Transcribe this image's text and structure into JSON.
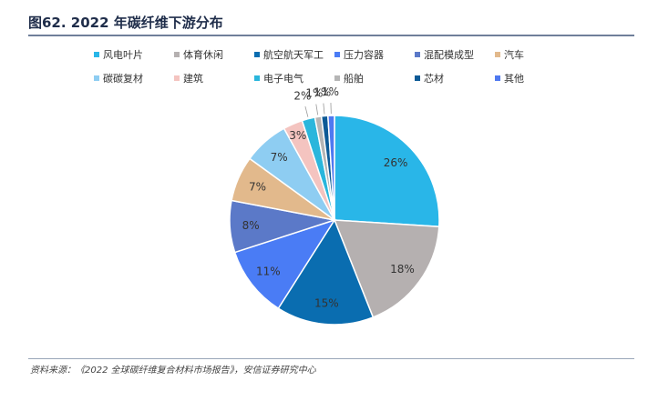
{
  "figure": {
    "title": "图62. 2022 年碳纤维下游分布",
    "source": "资料来源：《2022 全球碳纤维复合材料市场报告》，安信证券研究中心"
  },
  "chart_data": {
    "type": "pie",
    "title": "",
    "slices": [
      {
        "name": "风电叶片",
        "value": 26,
        "label": "26%",
        "color": "#29b6e8"
      },
      {
        "name": "体育休闲",
        "value": 18,
        "label": "18%",
        "color": "#b5b0b0"
      },
      {
        "name": "航空航天军工",
        "value": 15,
        "label": "15%",
        "color": "#0a6db0"
      },
      {
        "name": "压力容器",
        "value": 11,
        "label": "11%",
        "color": "#4a7cf5"
      },
      {
        "name": "混配模成型",
        "value": 8,
        "label": "8%",
        "color": "#5b79c8"
      },
      {
        "name": "汽车",
        "value": 7,
        "label": "7%",
        "color": "#e2b98c"
      },
      {
        "name": "碳碳复材",
        "value": 7,
        "label": "7%",
        "color": "#8ecdf2"
      },
      {
        "name": "建筑",
        "value": 3,
        "label": "3%",
        "color": "#f4c4c0"
      },
      {
        "name": "电子电气",
        "value": 2,
        "label": "2%",
        "color": "#2ab6dc"
      },
      {
        "name": "船舶",
        "value": 1,
        "label": "1%",
        "color": "#b5b5b5"
      },
      {
        "name": "芯材",
        "value": 1,
        "label": "1%",
        "color": "#0d5a96"
      },
      {
        "name": "其他",
        "value": 1,
        "label": "1%",
        "color": "#4f79f0"
      }
    ],
    "legend": "top"
  }
}
